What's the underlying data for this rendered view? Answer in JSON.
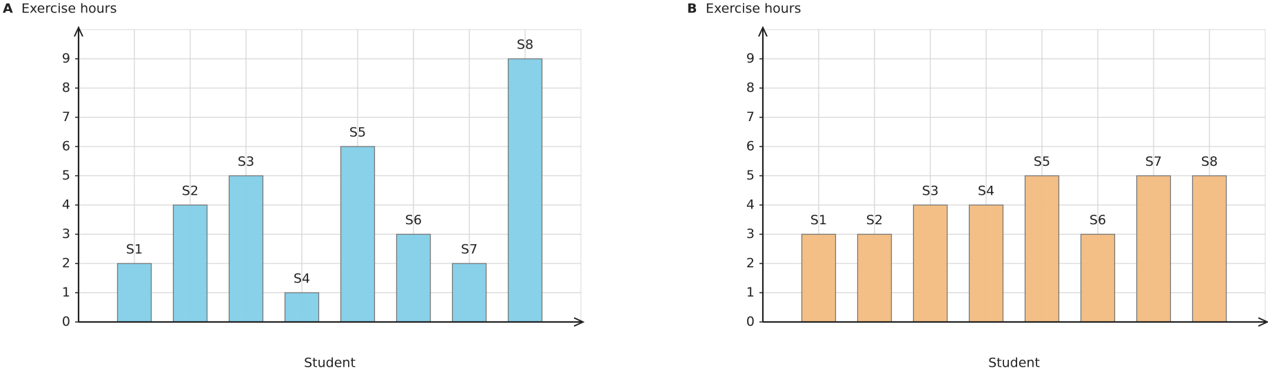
{
  "chart_data": [
    {
      "type": "bar",
      "label": "A",
      "title": "Exercise hours",
      "x_label": "Student",
      "categories": [
        "S1",
        "S2",
        "S3",
        "S4",
        "S5",
        "S6",
        "S7",
        "S8"
      ],
      "values": [
        2,
        4,
        5,
        1,
        6,
        3,
        2,
        9
      ],
      "color": "#82cfe8",
      "ylim": [
        0,
        10
      ],
      "yticks": [
        0,
        1,
        2,
        3,
        4,
        5,
        6,
        7,
        8,
        9
      ],
      "grid": true
    },
    {
      "type": "bar",
      "label": "B",
      "title": "Exercise hours",
      "x_label": "Student",
      "categories": [
        "S1",
        "S2",
        "S3",
        "S4",
        "S5",
        "S6",
        "S7",
        "S8"
      ],
      "values": [
        3,
        3,
        4,
        4,
        5,
        3,
        5,
        5
      ],
      "color": "#f2bc80",
      "ylim": [
        0,
        10
      ],
      "yticks": [
        0,
        1,
        2,
        3,
        4,
        5,
        6,
        7,
        8,
        9
      ],
      "grid": true
    }
  ]
}
